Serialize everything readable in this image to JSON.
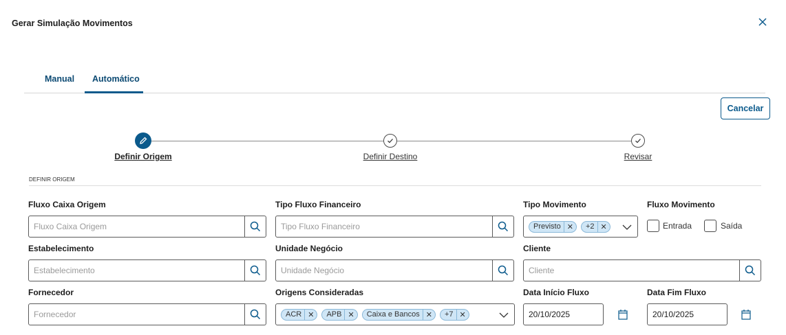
{
  "dialog": {
    "title": "Gerar Simulação Movimentos",
    "close_icon": "close-icon"
  },
  "tabs": [
    {
      "label": "Manual"
    },
    {
      "label": "Automático",
      "active": true
    }
  ],
  "cancel_label": "Cancelar",
  "stepper": [
    {
      "label": "Definir Origem",
      "state": "active",
      "icon": "pencil-icon"
    },
    {
      "label": "Definir Destino",
      "state": "pending",
      "icon": "check-icon"
    },
    {
      "label": "Revisar",
      "state": "pending",
      "icon": "check-icon"
    }
  ],
  "section_title": "DEFINIR ORIGEM",
  "fields": {
    "fluxo_caixa_origem": {
      "label": "Fluxo Caixa Origem",
      "placeholder": "Fluxo Caixa Origem"
    },
    "tipo_fluxo_financeiro": {
      "label": "Tipo Fluxo Financeiro",
      "placeholder": "Tipo Fluxo Financeiro"
    },
    "tipo_movimento": {
      "label": "Tipo Movimento",
      "chips": [
        "Previsto",
        "+2"
      ]
    },
    "fluxo_movimento": {
      "label": "Fluxo Movimento",
      "options": [
        {
          "label": "Entrada",
          "checked": false
        },
        {
          "label": "Saída",
          "checked": false
        }
      ]
    },
    "estabelecimento": {
      "label": "Estabelecimento",
      "placeholder": "Estabelecimento"
    },
    "unidade_negocio": {
      "label": "Unidade Negócio",
      "placeholder": "Unidade Negócio"
    },
    "cliente": {
      "label": "Cliente",
      "placeholder": "Cliente"
    },
    "fornecedor": {
      "label": "Fornecedor",
      "placeholder": "Fornecedor"
    },
    "origens_consideradas": {
      "label": "Origens Consideradas",
      "chips": [
        "ACR",
        "APB",
        "Caixa e Bancos",
        "+7"
      ]
    },
    "data_inicio": {
      "label": "Data Início Fluxo",
      "value": "20/10/2025"
    },
    "data_fim": {
      "label": "Data Fim Fluxo",
      "value": "20/10/2025"
    }
  },
  "colors": {
    "primary": "#0b5a8c",
    "chip_bg": "#cfe6f6"
  }
}
